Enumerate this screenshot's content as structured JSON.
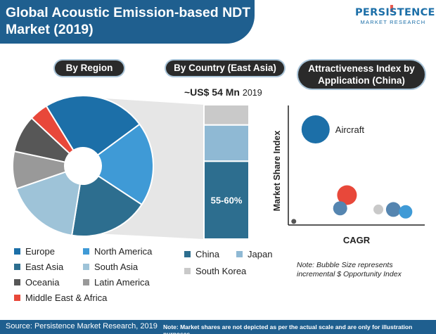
{
  "title": "Global Acoustic Emission-based NDT Market (2019)",
  "logo": {
    "main": "PERSISTENCE",
    "sub": "MARKET RESEARCH"
  },
  "footer": {
    "source": "Source: Persistence Market Research, 2019",
    "note": "Note: Market shares are not depicted as per the actual scale and are only for illustration purposes"
  },
  "colors": {
    "brand_blue": "#1f5f8f",
    "europe": "#1c6fa8",
    "north_america": "#3f9ad6",
    "east_asia": "#2d6e8f",
    "south_asia": "#9ec3d8",
    "oceania": "#575757",
    "latin_america": "#999999",
    "mea": "#e8483a"
  },
  "chart_data": [
    {
      "type": "pie",
      "title": "By Region",
      "donut": true,
      "slices": [
        {
          "label": "Europe",
          "value": 22,
          "color": "#1c6fa8"
        },
        {
          "label": "North America",
          "value": 18,
          "color": "#3f9ad6"
        },
        {
          "label": "East Asia",
          "value": 17,
          "color": "#2d6e8f"
        },
        {
          "label": "South Asia",
          "value": 16,
          "color": "#9ec3d8"
        },
        {
          "label": "Latin America",
          "value": 8,
          "color": "#999999"
        },
        {
          "label": "Oceania",
          "value": 8,
          "color": "#575757"
        },
        {
          "label": "Middle East & Africa",
          "value": 4,
          "color": "#e8483a"
        }
      ],
      "legend": [
        [
          "Europe",
          "North America"
        ],
        [
          "East Asia",
          "South Asia"
        ],
        [
          "Oceania",
          "Latin America"
        ],
        [
          "Middle East & Africa"
        ]
      ]
    },
    {
      "type": "bar",
      "stacked": true,
      "title": "By Country (East Asia)",
      "total_text": "~US$ 54 Mn",
      "total_year": "2019",
      "segments": [
        {
          "label": "China",
          "value": 58,
          "color": "#2d6e8f",
          "value_label": "55-60%"
        },
        {
          "label": "Japan",
          "value": 27,
          "color": "#8fb9d4"
        },
        {
          "label": "South Korea",
          "value": 15,
          "color": "#c9c9c9"
        }
      ]
    },
    {
      "type": "scatter",
      "bubble": true,
      "title": "Attractiveness Index by Application (China)",
      "xlabel": "CAGR",
      "ylabel": "Market Share Index",
      "xlim": [
        0,
        10
      ],
      "ylim": [
        0,
        10
      ],
      "points": [
        {
          "x": 2.0,
          "y": 8.0,
          "size": 40,
          "color": "#1c6fa8",
          "label": "Aircraft"
        },
        {
          "x": 4.3,
          "y": 2.5,
          "size": 28,
          "color": "#e8483a"
        },
        {
          "x": 3.8,
          "y": 1.4,
          "size": 20,
          "color": "#5585b0"
        },
        {
          "x": 6.6,
          "y": 1.3,
          "size": 14,
          "color": "#c9c9c9"
        },
        {
          "x": 7.7,
          "y": 1.3,
          "size": 21,
          "color": "#5585b0"
        },
        {
          "x": 8.6,
          "y": 1.1,
          "size": 19,
          "color": "#3f9ad6"
        },
        {
          "x": 0.4,
          "y": 0.3,
          "size": 7,
          "color": "#555555"
        }
      ],
      "note": "Note: Bubble Size represents incremental $ Opportunity Index"
    }
  ]
}
